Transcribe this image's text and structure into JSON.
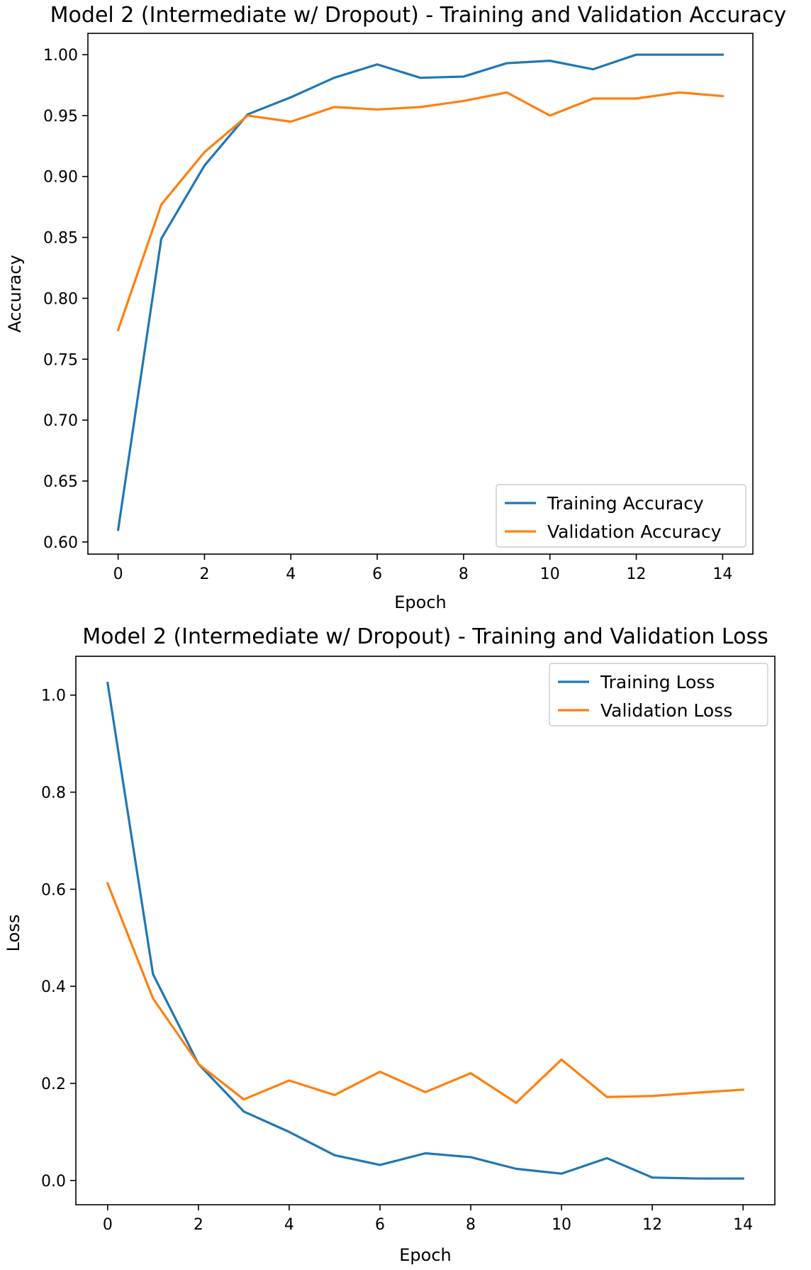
{
  "chart_data": [
    {
      "type": "line",
      "title": "Model 2 (Intermediate w/ Dropout) - Training and Validation Accuracy",
      "xlabel": "Epoch",
      "ylabel": "Accuracy",
      "xlim": [
        -0.7,
        14.7
      ],
      "ylim": [
        0.59,
        1.0175
      ],
      "xticks": [
        0,
        2,
        4,
        6,
        8,
        10,
        12,
        14
      ],
      "yticks": [
        0.6,
        0.65,
        0.7,
        0.75,
        0.8,
        0.85,
        0.9,
        0.95,
        1.0
      ],
      "ytick_labels": [
        "0.60",
        "0.65",
        "0.70",
        "0.75",
        "0.80",
        "0.85",
        "0.90",
        "0.95",
        "1.00"
      ],
      "legend": "lower-right",
      "grid": false,
      "x": [
        0,
        1,
        2,
        3,
        4,
        5,
        6,
        7,
        8,
        9,
        10,
        11,
        12,
        13,
        14
      ],
      "series": [
        {
          "name": "Training Accuracy",
          "color": "#1f77b4",
          "values": [
            0.61,
            0.849,
            0.909,
            0.951,
            0.965,
            0.981,
            0.992,
            0.981,
            0.982,
            0.993,
            0.995,
            0.988,
            1.0,
            1.0,
            1.0
          ]
        },
        {
          "name": "Validation Accuracy",
          "color": "#ff7f0e",
          "values": [
            0.774,
            0.877,
            0.92,
            0.95,
            0.945,
            0.957,
            0.955,
            0.957,
            0.962,
            0.969,
            0.95,
            0.964,
            0.964,
            0.969,
            0.966
          ]
        }
      ]
    },
    {
      "type": "line",
      "title": "Model 2 (Intermediate w/ Dropout) - Training and Validation Loss",
      "xlabel": "Epoch",
      "ylabel": "Loss",
      "xlim": [
        -0.7,
        14.7
      ],
      "ylim": [
        -0.05,
        1.08
      ],
      "xticks": [
        0,
        2,
        4,
        6,
        8,
        10,
        12,
        14
      ],
      "yticks": [
        0.0,
        0.2,
        0.4,
        0.6,
        0.8,
        1.0
      ],
      "ytick_labels": [
        "0.0",
        "0.2",
        "0.4",
        "0.6",
        "0.8",
        "1.0"
      ],
      "legend": "upper-right",
      "grid": false,
      "x": [
        0,
        1,
        2,
        3,
        4,
        5,
        6,
        7,
        8,
        9,
        10,
        11,
        12,
        13,
        14
      ],
      "series": [
        {
          "name": "Training Loss",
          "color": "#1f77b4",
          "values": [
            1.025,
            0.425,
            0.24,
            0.142,
            0.1,
            0.052,
            0.032,
            0.056,
            0.048,
            0.024,
            0.014,
            0.046,
            0.006,
            0.004,
            0.004
          ]
        },
        {
          "name": "Validation Loss",
          "color": "#ff7f0e",
          "values": [
            0.612,
            0.375,
            0.24,
            0.167,
            0.206,
            0.176,
            0.224,
            0.182,
            0.221,
            0.16,
            0.249,
            0.172,
            0.174,
            0.181,
            0.187
          ]
        }
      ]
    }
  ]
}
